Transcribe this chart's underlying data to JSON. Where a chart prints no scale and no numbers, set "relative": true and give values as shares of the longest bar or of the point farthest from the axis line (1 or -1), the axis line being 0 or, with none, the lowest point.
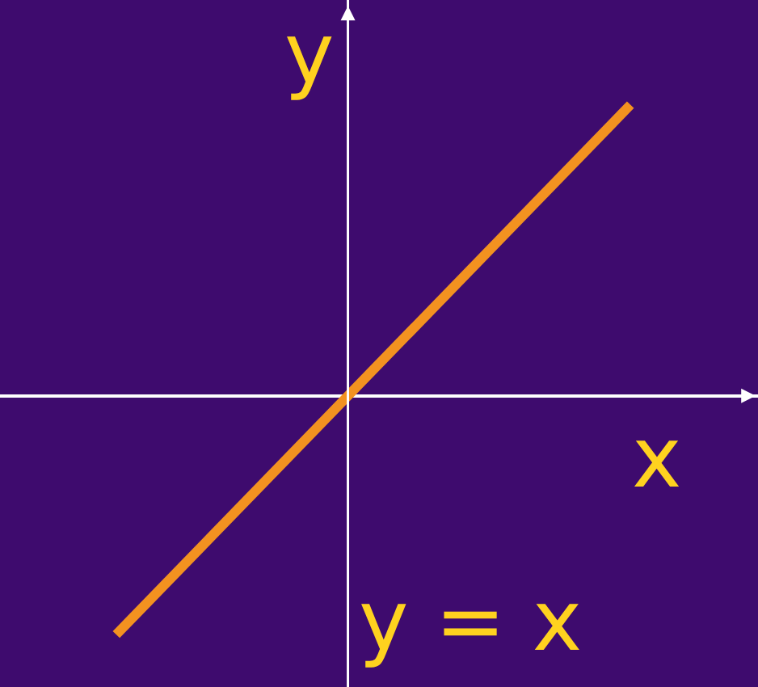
{
  "chart_data": {
    "type": "line",
    "relative": true,
    "xlabel": "x",
    "ylabel": "y",
    "categories": [
      null,
      null
    ],
    "series": [
      {
        "color": "#f39220",
        "values": [
          -0.82,
          1
        ]
      }
    ],
    "annotations": [
      "y = x"
    ],
    "grid": false,
    "marker": "none",
    "line_style": "solid"
  }
}
